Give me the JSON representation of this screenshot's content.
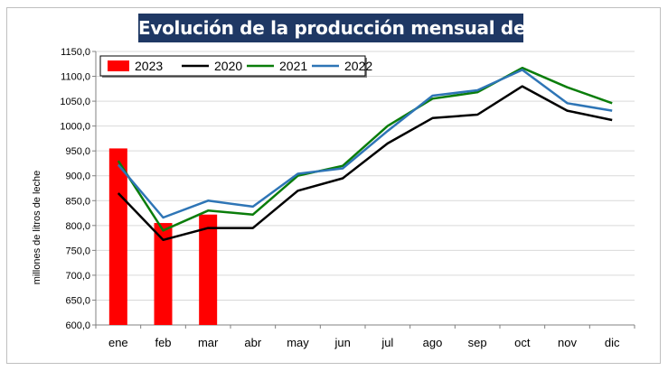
{
  "chart_data": {
    "type": "bar+line",
    "title": "Evolución de la producción mensual de leche",
    "ylabel": "millones de litros de leche",
    "xlabel": "",
    "categories": [
      "ene",
      "feb",
      "mar",
      "abr",
      "may",
      "jun",
      "jul",
      "ago",
      "sep",
      "oct",
      "nov",
      "dic"
    ],
    "ylim": [
      600,
      1150
    ],
    "yticks": [
      "600,0",
      "650,0",
      "700,0",
      "750,0",
      "800,0",
      "850,0",
      "900,0",
      "950,0",
      "1000,0",
      "1050,0",
      "1100,0",
      "1150,0"
    ],
    "grid": true,
    "legend_position": "top-left",
    "bars": {
      "name": "2023",
      "color": "#ff0000",
      "values": [
        955,
        805,
        822
      ]
    },
    "series": [
      {
        "name": "2020",
        "color": "#000000",
        "values": [
          865,
          771,
          795,
          795,
          870,
          895,
          965,
          1016,
          1023,
          1080,
          1031,
          1012
        ]
      },
      {
        "name": "2021",
        "color": "#0a7d0a",
        "values": [
          930,
          790,
          830,
          822,
          900,
          920,
          1000,
          1055,
          1068,
          1117,
          1078,
          1046
        ]
      },
      {
        "name": "2022",
        "color": "#2e75b6",
        "values": [
          922,
          816,
          850,
          838,
          904,
          915,
          990,
          1061,
          1072,
          1113,
          1046,
          1031
        ]
      }
    ]
  }
}
